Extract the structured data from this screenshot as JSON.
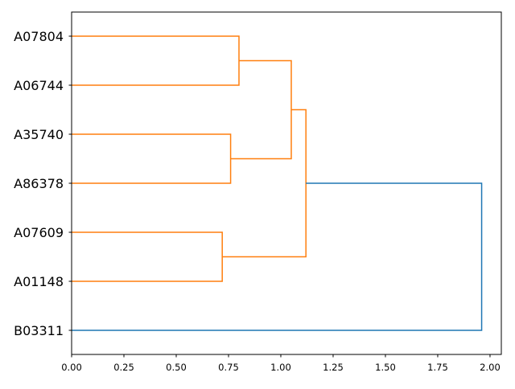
{
  "chart_data": {
    "type": "dendrogram",
    "orientation": "horizontal",
    "leaves": [
      "A07804",
      "A06744",
      "A35740",
      "A86378",
      "A07609",
      "A01148",
      "B03311"
    ],
    "merges": [
      {
        "left": "A07804",
        "right": "A06744",
        "height": 0.8,
        "color": "#ff7f0e"
      },
      {
        "left": "A35740",
        "right": "A86378",
        "height": 0.76,
        "color": "#ff7f0e"
      },
      {
        "left": "A07609",
        "right": "A01148",
        "height": 0.72,
        "color": "#ff7f0e"
      },
      {
        "left": "A07804+A06744",
        "right": "A35740+A86378",
        "height": 1.05,
        "color": "#ff7f0e"
      },
      {
        "left": "A07804+A06744+A35740+A86378",
        "right": "A07609+A01148",
        "height": 1.12,
        "color": "#ff7f0e"
      },
      {
        "left": "A07804+A06744+A35740+A86378+A07609+A01148",
        "right": "B03311",
        "height": 1.96,
        "color": "#1f77b4"
      }
    ],
    "xlim": [
      0,
      2.054
    ],
    "xticks": [
      "0.00",
      "0.25",
      "0.50",
      "0.75",
      "1.00",
      "1.25",
      "1.50",
      "1.75",
      "2.00"
    ],
    "grid": false,
    "colors": {
      "cluster": "#ff7f0e",
      "link": "#1f77b4"
    }
  }
}
